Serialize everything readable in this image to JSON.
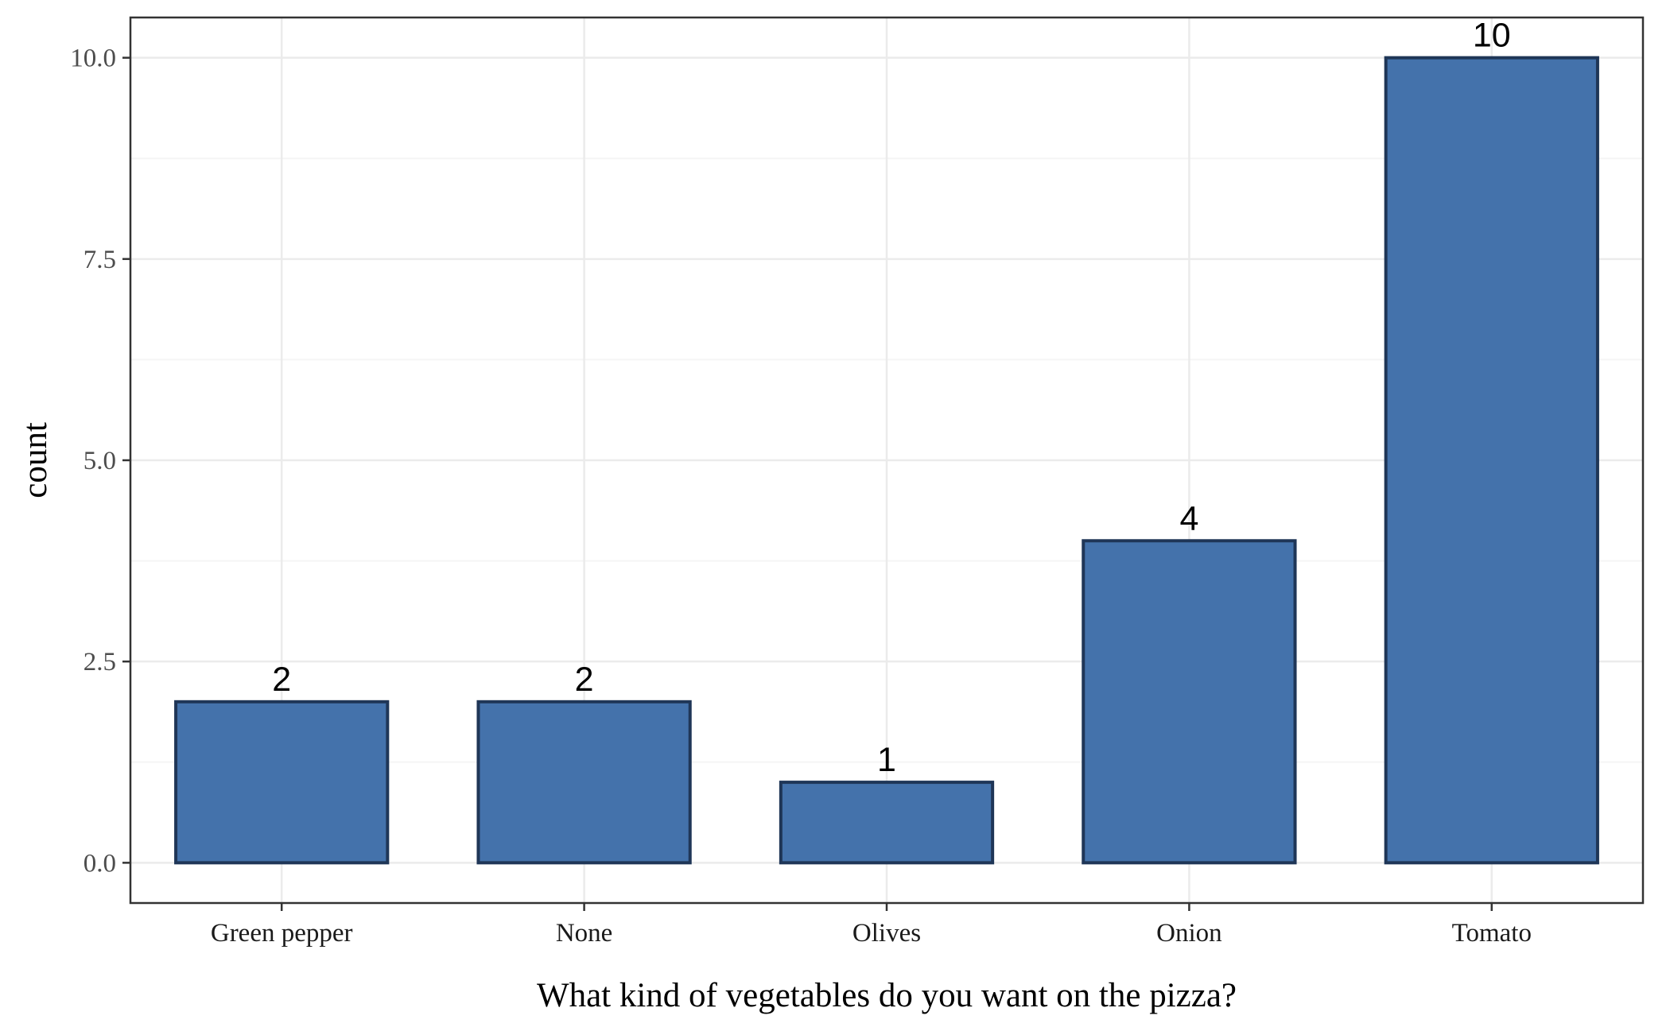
{
  "chart_data": {
    "type": "bar",
    "title": "",
    "xlabel": "What kind of vegetables do you want on the pizza?",
    "ylabel": "count",
    "categories": [
      "Green pepper",
      "None",
      "Olives",
      "Onion",
      "Tomato"
    ],
    "values": [
      2,
      2,
      1,
      4,
      10
    ],
    "data_labels": [
      "2",
      "2",
      "1",
      "4",
      "10"
    ],
    "ylim": [
      -0.5,
      10.5
    ],
    "yticks": [
      0.0,
      2.5,
      5.0,
      7.5,
      10.0
    ],
    "ytick_labels": [
      "0.0",
      "2.5",
      "5.0",
      "7.5",
      "10.0"
    ],
    "grid": true,
    "legend": "none",
    "colors": {
      "bar_fill": "#4472AB",
      "bar_stroke": "#1F3657",
      "grid_major": "#EBEBEB",
      "grid_minor": "#F5F5F5",
      "panel_border": "#333333"
    }
  }
}
